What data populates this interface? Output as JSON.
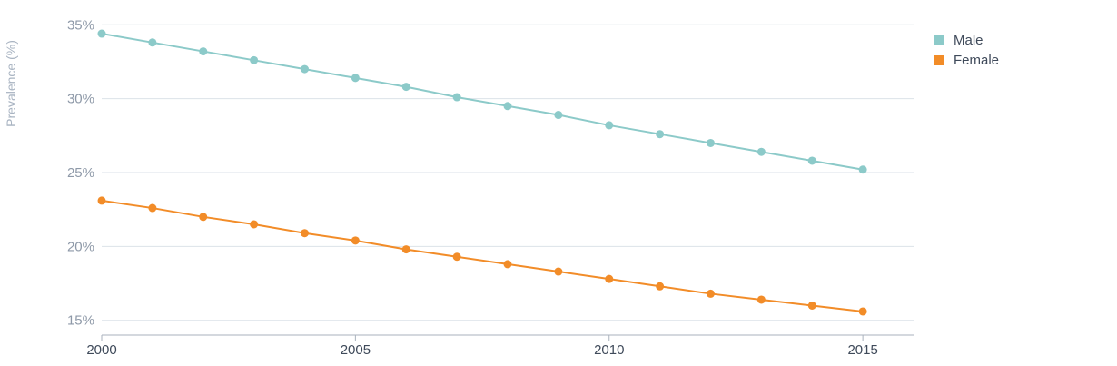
{
  "chart_data": {
    "type": "line",
    "title": "",
    "xlabel": "",
    "ylabel": "Prevalence (%)",
    "x": [
      2000,
      2001,
      2002,
      2003,
      2004,
      2005,
      2006,
      2007,
      2008,
      2009,
      2010,
      2011,
      2012,
      2013,
      2014,
      2015
    ],
    "xlim": [
      2000,
      2016
    ],
    "x_ticks": [
      2000,
      2005,
      2010,
      2015
    ],
    "x_tick_labels": [
      "2000",
      "2005",
      "2010",
      "2015"
    ],
    "ylim": [
      14,
      36
    ],
    "y_ticks": [
      15,
      20,
      25,
      30,
      35
    ],
    "y_tick_labels": [
      "15%",
      "20%",
      "25%",
      "30%",
      "35%"
    ],
    "grid": true,
    "legend_position": "top-right",
    "series": [
      {
        "name": "Male",
        "color": "#8ccac9",
        "values": [
          34.4,
          33.8,
          33.2,
          32.6,
          32.0,
          31.4,
          30.8,
          30.1,
          29.5,
          28.9,
          28.2,
          27.6,
          27.0,
          26.4,
          25.8,
          25.2
        ]
      },
      {
        "name": "Female",
        "color": "#f28c28",
        "values": [
          23.1,
          22.6,
          22.0,
          21.5,
          20.9,
          20.4,
          19.8,
          19.3,
          18.8,
          18.3,
          17.8,
          17.3,
          16.8,
          16.4,
          16.0,
          15.6
        ]
      }
    ]
  }
}
